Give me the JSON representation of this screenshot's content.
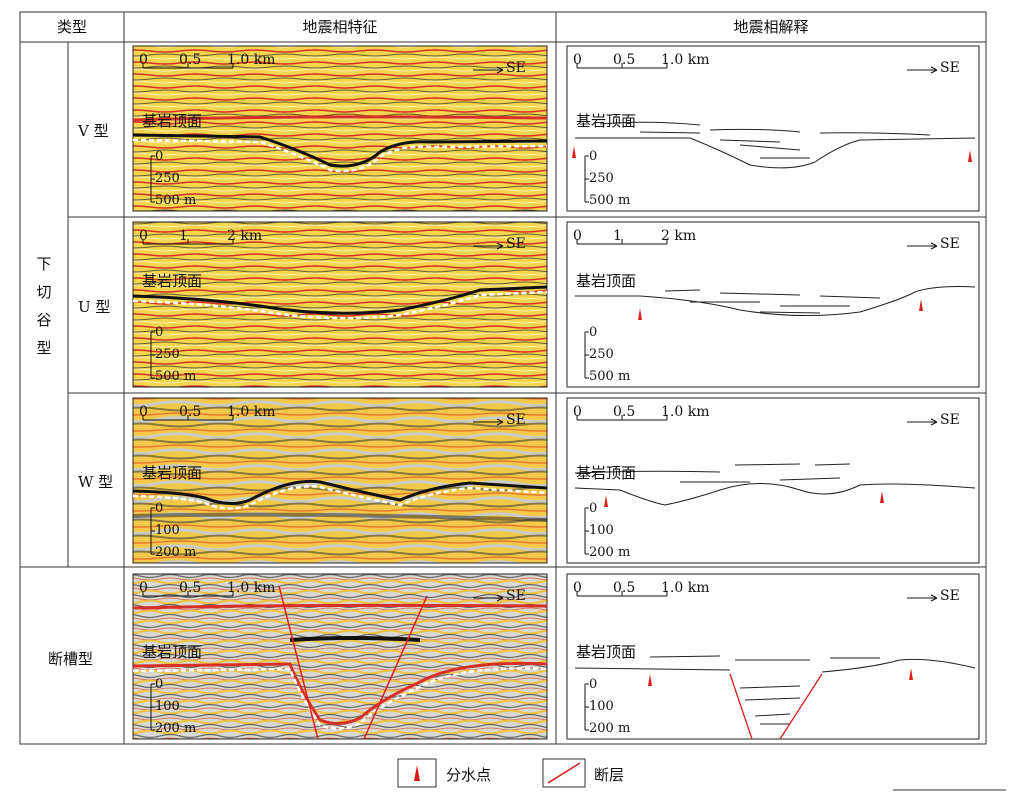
{
  "header": {
    "col_type": "类型",
    "col_feature": "地震相特征",
    "col_interp": "地震相解释"
  },
  "group": {
    "label": "下切谷型"
  },
  "rows": [
    {
      "type": "V 型",
      "scale_km": [
        "0",
        "0.5",
        "1.0 km"
      ],
      "depth": [
        "0",
        "250",
        "500 m"
      ]
    },
    {
      "type": "U 型",
      "scale_km": [
        "0",
        "1",
        "2 km"
      ],
      "depth": [
        "0",
        "250",
        "500 m"
      ]
    },
    {
      "type": "W 型",
      "scale_km": [
        "0",
        "0.5",
        "1.0 km"
      ],
      "depth": [
        "0",
        "100",
        "200 m"
      ]
    },
    {
      "type": "断槽型",
      "scale_km": [
        "0",
        "0.5",
        "1.0 km"
      ],
      "depth": [
        "0",
        "100",
        "200 m"
      ]
    }
  ],
  "bedrock_label": "基岩顶面",
  "direction": "SE",
  "legend": {
    "watershed": "分水点",
    "fault": "断层"
  },
  "colors": {
    "watershed": "#e01b1b",
    "fault": "#e01b1b",
    "seismic_red": "#d9261c",
    "seismic_yellow": "#f5d23a"
  }
}
